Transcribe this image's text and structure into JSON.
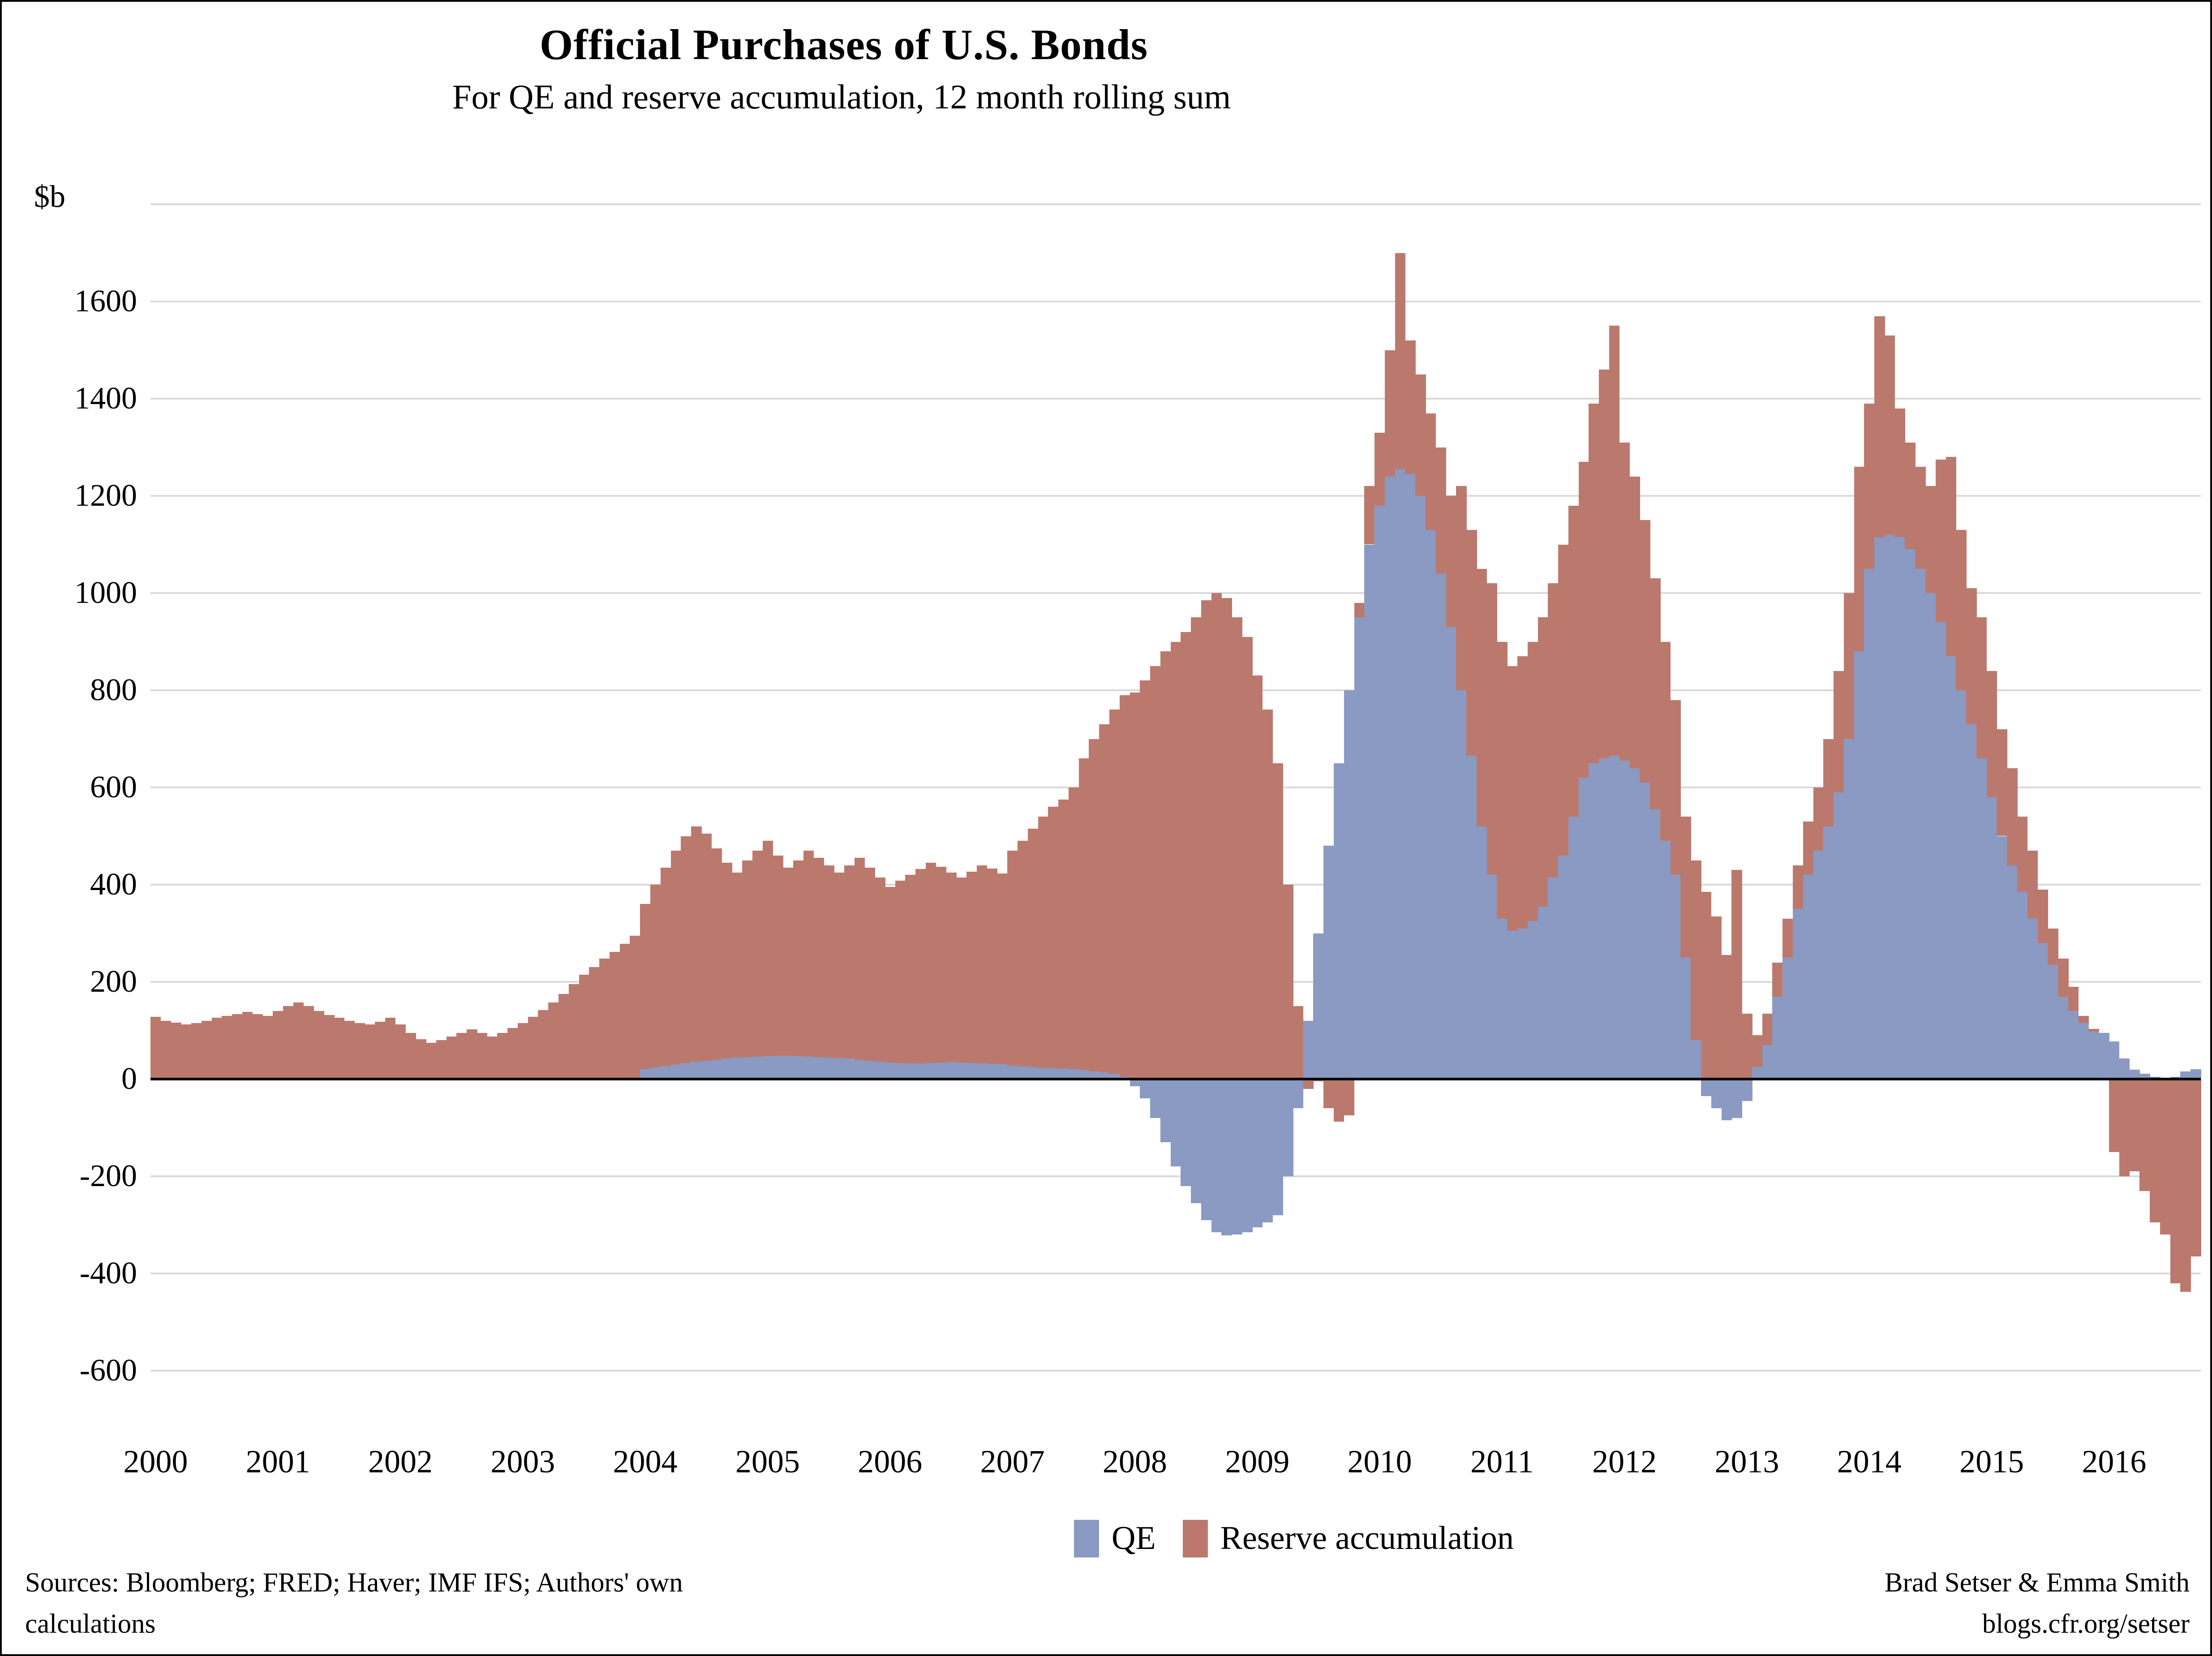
{
  "title": "Official Purchases of U.S. Bonds",
  "subtitle": "For QE and reserve accumulation, 12 month rolling sum",
  "y_axis": {
    "unit_label": "$b",
    "tick_values": [
      1600,
      1400,
      1200,
      1000,
      800,
      600,
      400,
      200,
      0,
      -200,
      -400,
      -600
    ]
  },
  "x_axis": {
    "years": [
      "2000",
      "2001",
      "2002",
      "2003",
      "2004",
      "2005",
      "2006",
      "2007",
      "2008",
      "2009",
      "2010",
      "2011",
      "2012",
      "2013",
      "2014",
      "2015",
      "2016"
    ]
  },
  "legend": [
    {
      "label": "QE",
      "color": "#8A9AC2"
    },
    {
      "label": "Reserve accumulation",
      "color": "#BB796E"
    }
  ],
  "footer": {
    "source_line1": "Sources: Bloomberg; FRED; Haver; IMF IFS; Authors' own",
    "source_line2": "calculations",
    "credit_line1": "Brad Setser & Emma Smith",
    "credit_line2": "blogs.cfr.org/setser"
  },
  "colors": {
    "qe_blue": "#8A9AC2",
    "reserve_red": "#BB796E",
    "gridline": "#D9D9D9",
    "zero_line": "#0a0a0a"
  },
  "chart_data": {
    "type": "bar",
    "stacked": true,
    "title": "Official Purchases of U.S. Bonds",
    "subtitle": "For QE and reserve accumulation, 12 month rolling sum",
    "ylabel": "$b (USD billions, 12 month rolling sum)",
    "xlabel": "monthly bars, Jan 2000 - Sep 2016",
    "ylim": [
      -600,
      1800
    ],
    "gridline_step": 200,
    "legend_position": "bottom-center",
    "start_month": "2000-01",
    "end_month": "2016-09",
    "series": [
      {
        "name": "QE",
        "color": "#8A9AC2",
        "values": [
          0,
          0,
          0,
          0,
          0,
          0,
          0,
          0,
          0,
          0,
          0,
          0,
          0,
          0,
          0,
          0,
          0,
          0,
          0,
          0,
          0,
          0,
          0,
          0,
          0,
          0,
          0,
          0,
          0,
          0,
          0,
          0,
          0,
          0,
          0,
          0,
          0,
          0,
          0,
          0,
          0,
          0,
          0,
          0,
          0,
          0,
          0,
          0,
          20,
          24,
          27,
          30,
          33,
          36,
          38,
          40,
          42,
          44,
          45,
          46,
          47,
          48,
          48,
          47,
          46,
          45,
          44,
          43,
          42,
          40,
          38,
          36,
          34,
          33,
          32,
          32,
          33,
          34,
          35,
          34,
          33,
          32,
          31,
          30,
          28,
          26,
          25,
          23,
          22,
          21,
          20,
          18,
          16,
          14,
          10,
          5,
          -15,
          -40,
          -80,
          -130,
          -180,
          -220,
          -255,
          -290,
          -315,
          -322,
          -320,
          -315,
          -305,
          -295,
          -280,
          -200,
          -60,
          120,
          300,
          480,
          650,
          800,
          950,
          1100,
          1180,
          1240,
          1255,
          1245,
          1200,
          1130,
          1040,
          930,
          800,
          665,
          520,
          420,
          330,
          305,
          310,
          325,
          355,
          415,
          460,
          540,
          620,
          650,
          660,
          665,
          655,
          640,
          610,
          555,
          490,
          420,
          250,
          80,
          -35,
          -60,
          -85,
          -80,
          -45,
          25,
          70,
          170,
          250,
          350,
          420,
          470,
          520,
          590,
          700,
          880,
          1050,
          1114,
          1120,
          1115,
          1090,
          1050,
          1000,
          940,
          870,
          800,
          730,
          660,
          580,
          500,
          440,
          385,
          330,
          280,
          235,
          170,
          140,
          115,
          98,
          95,
          77,
          42,
          19,
          11,
          5,
          2,
          5,
          16,
          20
        ]
      },
      {
        "name": "Reserve accumulation",
        "color": "#BB796E",
        "values": [
          128,
          120,
          116,
          112,
          115,
          120,
          126,
          130,
          134,
          138,
          134,
          130,
          140,
          150,
          158,
          150,
          140,
          132,
          126,
          120,
          115,
          112,
          118,
          126,
          112,
          95,
          82,
          75,
          80,
          88,
          95,
          102,
          95,
          88,
          95,
          105,
          115,
          128,
          142,
          158,
          175,
          195,
          215,
          230,
          248,
          262,
          278,
          295,
          340,
          376,
          408,
          440,
          467,
          484,
          467,
          435,
          403,
          381,
          405,
          424,
          443,
          412,
          387,
          403,
          424,
          410,
          396,
          382,
          398,
          415,
          397,
          379,
          361,
          375,
          388,
          400,
          412,
          403,
          390,
          381,
          394,
          408,
          402,
          393,
          442,
          464,
          490,
          517,
          538,
          554,
          580,
          642,
          684,
          716,
          750,
          785,
          795,
          820,
          850,
          880,
          900,
          920,
          950,
          985,
          1000,
          990,
          950,
          910,
          830,
          760,
          650,
          400,
          150,
          -20,
          -5,
          -60,
          -88,
          -75,
          30,
          120,
          150,
          260,
          445,
          275,
          250,
          240,
          260,
          270,
          420,
          465,
          530,
          600,
          570,
          545,
          560,
          575,
          595,
          605,
          640,
          640,
          650,
          740,
          800,
          885,
          655,
          600,
          540,
          475,
          410,
          360,
          290,
          370,
          385,
          335,
          255,
          430,
          135,
          65,
          65,
          70,
          80,
          90,
          110,
          130,
          180,
          250,
          300,
          380,
          340,
          456,
          410,
          265,
          220,
          210,
          220,
          335,
          410,
          330,
          280,
          290,
          260,
          220,
          200,
          155,
          140,
          110,
          75,
          78,
          50,
          15,
          5,
          0,
          -150,
          -200,
          -190,
          -230,
          -295,
          -320,
          -420,
          -438,
          -365
        ]
      }
    ]
  }
}
